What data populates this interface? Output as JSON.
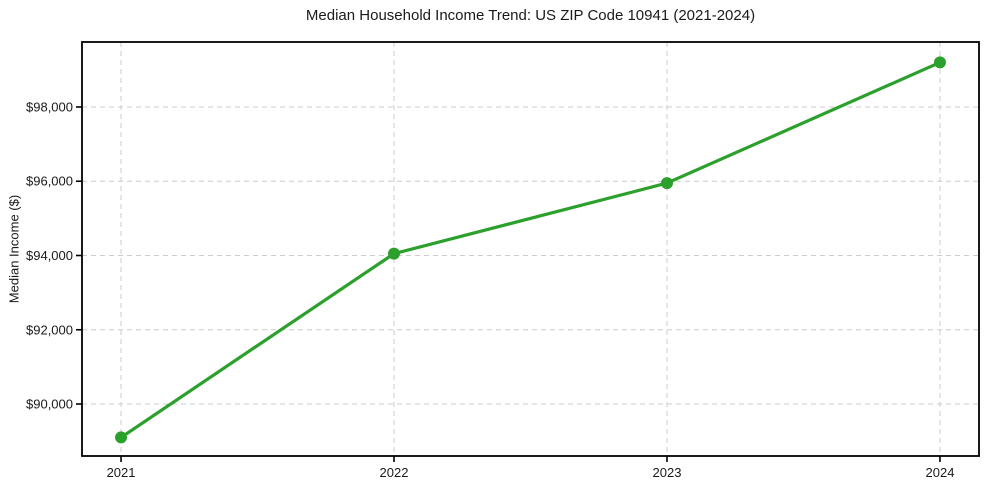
{
  "chart_data": {
    "type": "line",
    "title": "Median Household Income Trend: US ZIP Code 10941 (2021-2024)",
    "xlabel": "",
    "ylabel": "Median Income ($)",
    "x": [
      2021,
      2022,
      2023,
      2024
    ],
    "values": [
      89100,
      94050,
      95950,
      99200
    ],
    "xtick_labels": [
      "2021",
      "2022",
      "2023",
      "2024"
    ],
    "xtick_values": [
      2021,
      2022,
      2023,
      2024
    ],
    "ytick_labels": [
      "$90,000",
      "$92,000",
      "$94,000",
      "$96,000",
      "$98,000"
    ],
    "ytick_values": [
      90000,
      92000,
      94000,
      96000,
      98000
    ],
    "xlim": [
      2020.857,
      2024.143
    ],
    "ylim": [
      88600,
      99750
    ],
    "grid": true,
    "grid_style": "dashed",
    "legend_position": "none",
    "marker": "circle",
    "colors": {
      "line": "#2ca02c",
      "marker": "#2ca02c",
      "grid": "#cccccc",
      "axis": "#000000",
      "text": "#1a1a1a",
      "background": "#ffffff"
    }
  }
}
